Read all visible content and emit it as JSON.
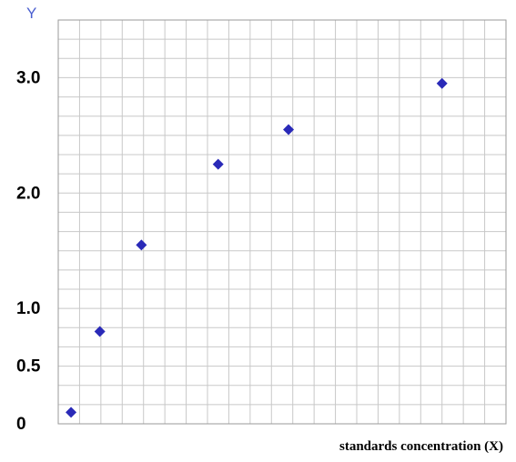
{
  "chart_data": {
    "type": "scatter",
    "title": "",
    "xlabel": "standards concentration (X)",
    "ylabel": "Y",
    "y_ticks": [
      {
        "label": "3.0",
        "value": 3.0
      },
      {
        "label": "2.0",
        "value": 2.0
      },
      {
        "label": "1.0",
        "value": 1.0
      },
      {
        "label": "0.5",
        "value": 0.5
      },
      {
        "label": "0",
        "value": 0.0
      }
    ],
    "ylim": [
      0,
      3.5
    ],
    "xlim": [
      0,
      7.0
    ],
    "grid": true,
    "colors": {
      "marker": "#2a2ab8",
      "grid": "#c8c8c8",
      "ylabel": "#4a5fd0"
    },
    "series": [
      {
        "marker": "diamond",
        "points": [
          {
            "x": 0.2,
            "y": 0.1
          },
          {
            "x": 0.65,
            "y": 0.8
          },
          {
            "x": 1.3,
            "y": 1.55
          },
          {
            "x": 2.5,
            "y": 2.25
          },
          {
            "x": 3.6,
            "y": 2.55
          },
          {
            "x": 6.0,
            "y": 2.95
          }
        ]
      }
    ]
  }
}
